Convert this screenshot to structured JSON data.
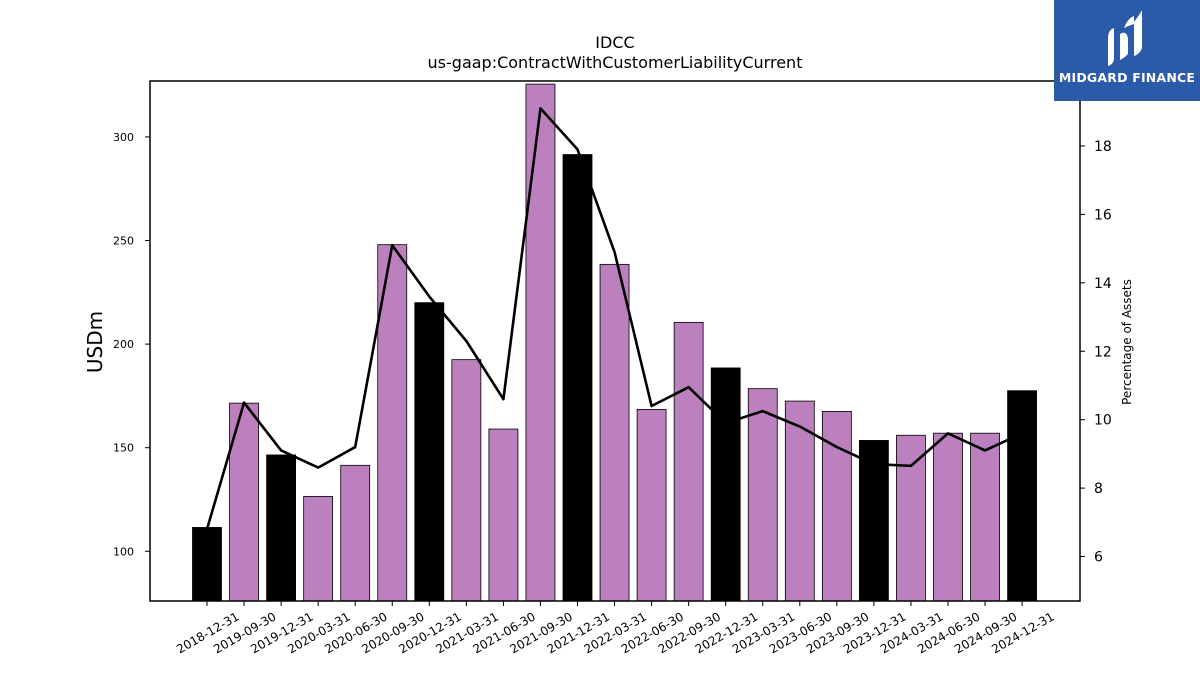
{
  "chart_data": {
    "type": "bar",
    "title": "IDCC",
    "subtitle": "us-gaap:ContractWithCustomerLiabilityCurrent",
    "ylabel": "USDm",
    "y2label": "Percentage of Assets",
    "ylim": [
      76,
      327
    ],
    "y2lim": [
      4.7,
      19.9
    ],
    "yticks": [
      100,
      150,
      200,
      250,
      300
    ],
    "y2ticks": [
      6,
      8,
      10,
      12,
      14,
      16,
      18
    ],
    "categories": [
      "2018-12-31",
      "2019-09-30",
      "2019-12-31",
      "2020-03-31",
      "2020-06-30",
      "2020-09-30",
      "2020-12-31",
      "2021-03-31",
      "2021-06-30",
      "2021-09-30",
      "2021-12-31",
      "2022-03-31",
      "2022-06-30",
      "2022-09-30",
      "2022-12-31",
      "2023-03-31",
      "2023-06-30",
      "2023-09-30",
      "2023-12-31",
      "2024-03-31",
      "2024-06-30",
      "2024-09-30",
      "2024-12-31"
    ],
    "series": [
      {
        "values": [
          111.5,
          171.5,
          146.5,
          126.5,
          141.5,
          248,
          220,
          192.5,
          159,
          325.5,
          291.5,
          238.5,
          168.5,
          210.5,
          188.5,
          178.5,
          172.5,
          167.5,
          153.5,
          156,
          157,
          157,
          177.5
        ]
      },
      {
        "values": [
          6.8,
          10.5,
          9.1,
          8.6,
          9.2,
          15.1,
          13.6,
          12.3,
          10.6,
          19.1,
          17.9,
          14.9,
          10.4,
          10.95,
          9.9,
          10.25,
          9.8,
          9.2,
          8.7,
          8.65,
          9.6,
          9.1,
          9.6
        ]
      }
    ],
    "bar_colors": [
      "#000000",
      "#bb80bd",
      "#000000",
      "#bb80bd",
      "#bb80bd",
      "#bb80bd",
      "#000000",
      "#bb80bd",
      "#bb80bd",
      "#bb80bd",
      "#000000",
      "#bb80bd",
      "#bb80bd",
      "#bb80bd",
      "#000000",
      "#bb80bd",
      "#bb80bd",
      "#bb80bd",
      "#000000",
      "#bb80bd",
      "#bb80bd",
      "#bb80bd",
      "#000000"
    ],
    "line_color": "#000000",
    "grid": false,
    "legend": "none"
  },
  "logo": {
    "text": "MIDGARD FINANCE",
    "background": "#2b5aa8"
  }
}
